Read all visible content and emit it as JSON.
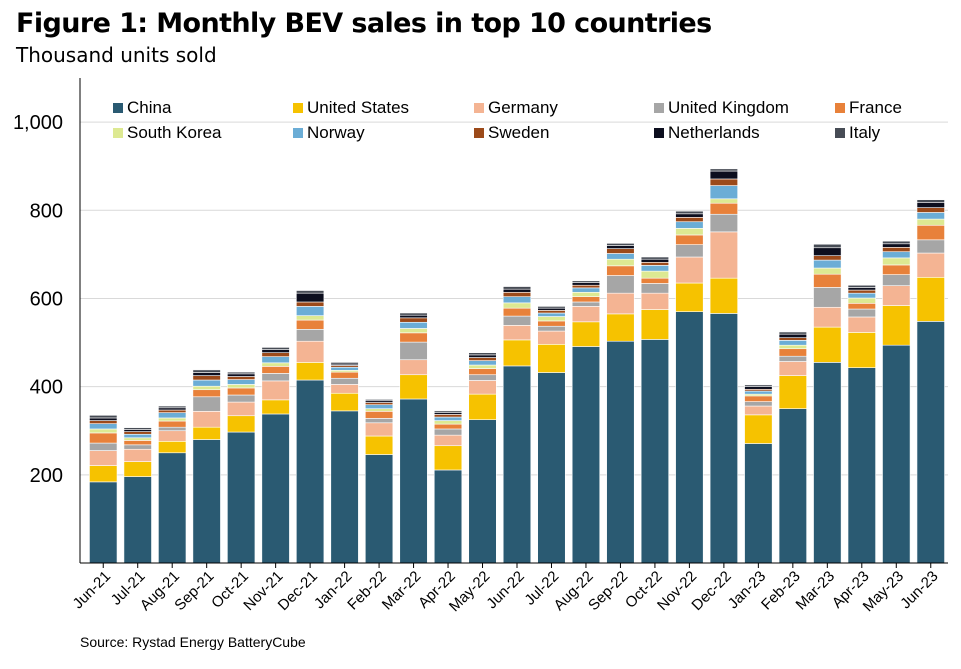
{
  "title": "Figure 1: Monthly BEV sales in top 10 countries",
  "subtitle": "Thousand units sold",
  "source": "Source: Rystad Energy BatteryCube",
  "chart_data": {
    "type": "bar",
    "stacked": true,
    "ylim": [
      0,
      1100
    ],
    "yticks": [
      200,
      400,
      600,
      800,
      1000
    ],
    "ytick_labels": [
      "200",
      "400",
      "600",
      "800",
      "1,000"
    ],
    "grid": true,
    "legend_position": "top",
    "categories": [
      "Jun-21",
      "Jul-21",
      "Aug-21",
      "Sep-21",
      "Oct-21",
      "Nov-21",
      "Dec-21",
      "Jan-22",
      "Feb-22",
      "Mar-22",
      "Apr-22",
      "May-22",
      "Jun-22",
      "Jul-22",
      "Aug-22",
      "Sep-22",
      "Oct-22",
      "Nov-22",
      "Dec-22",
      "Jan-23",
      "Feb-23",
      "Mar-23",
      "Apr-23",
      "May-23",
      "Jun-23"
    ],
    "series": [
      {
        "name": "China",
        "color": "#2a5a72",
        "values": [
          184,
          196,
          250,
          280,
          297,
          338,
          415,
          345,
          246,
          372,
          211,
          325,
          447,
          432,
          491,
          503,
          507,
          570,
          566,
          271,
          350,
          455,
          443,
          494,
          548
        ]
      },
      {
        "name": "United States",
        "color": "#f6c200",
        "values": [
          37,
          34,
          26,
          28,
          37,
          32,
          40,
          40,
          42,
          55,
          55,
          58,
          59,
          64,
          56,
          62,
          68,
          65,
          80,
          65,
          75,
          80,
          80,
          90,
          100
        ]
      },
      {
        "name": "Germany",
        "color": "#f4b493",
        "values": [
          34,
          28,
          24,
          36,
          31,
          43,
          48,
          20,
          30,
          34,
          24,
          31,
          33,
          30,
          35,
          47,
          37,
          59,
          105,
          20,
          32,
          45,
          35,
          45,
          55
        ]
      },
      {
        "name": "United Kingdom",
        "color": "#a6a6a6",
        "values": [
          17,
          10,
          8,
          33,
          16,
          17,
          27,
          14,
          10,
          40,
          14,
          13,
          21,
          11,
          10,
          40,
          22,
          28,
          40,
          10,
          12,
          45,
          18,
          25,
          30
        ]
      },
      {
        "name": "France",
        "color": "#e8813a",
        "values": [
          23,
          10,
          14,
          16,
          16,
          16,
          21,
          14,
          16,
          21,
          11,
          14,
          18,
          12,
          12,
          22,
          12,
          22,
          25,
          13,
          17,
          30,
          13,
          22,
          33
        ]
      },
      {
        "name": "South Korea",
        "color": "#dde992",
        "values": [
          9,
          6,
          7,
          8,
          8,
          8,
          10,
          4,
          6,
          10,
          8,
          8,
          12,
          10,
          10,
          15,
          16,
          15,
          10,
          4,
          8,
          14,
          12,
          16,
          14
        ]
      },
      {
        "name": "Norway",
        "color": "#6badd6",
        "values": [
          12,
          8,
          12,
          14,
          11,
          14,
          21,
          7,
          9,
          14,
          8,
          10,
          14,
          8,
          10,
          13,
          13,
          15,
          30,
          7,
          11,
          18,
          11,
          14,
          15
        ]
      },
      {
        "name": "Sweden",
        "color": "#9c4a1a",
        "values": [
          7,
          6,
          6,
          10,
          7,
          9,
          10,
          4,
          5,
          10,
          6,
          7,
          10,
          6,
          6,
          11,
          7,
          10,
          15,
          4,
          6,
          10,
          7,
          10,
          11
        ]
      },
      {
        "name": "Netherlands",
        "color": "#0c0e1e",
        "values": [
          6,
          5,
          5,
          7,
          6,
          7,
          20,
          3,
          4,
          6,
          4,
          6,
          7,
          5,
          6,
          7,
          7,
          8,
          18,
          6,
          8,
          18,
          6,
          8,
          12
        ]
      },
      {
        "name": "Italy",
        "color": "#474c55",
        "values": [
          6,
          4,
          4,
          6,
          4,
          5,
          6,
          4,
          3,
          5,
          4,
          5,
          6,
          4,
          4,
          5,
          5,
          6,
          5,
          4,
          5,
          8,
          5,
          6,
          6
        ]
      }
    ]
  }
}
